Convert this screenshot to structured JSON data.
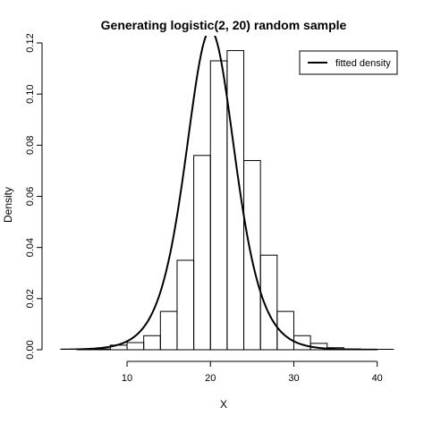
{
  "chart_data": {
    "type": "bar",
    "title": "Generating logistic(2, 20) random sample",
    "xlabel": "X",
    "ylabel": "Density",
    "xlim": [
      1.2,
      42.5
    ],
    "ylim": [
      0,
      0.12
    ],
    "x_ticks": [
      10,
      20,
      30,
      40
    ],
    "x_tick_labels": [
      "10",
      "20",
      "30",
      "40"
    ],
    "y_ticks": [
      0,
      0.02,
      0.04,
      0.06,
      0.08,
      0.1,
      0.12
    ],
    "y_tick_labels": [
      "0.00",
      "0.02",
      "0.04",
      "0.06",
      "0.08",
      "0.10",
      "0.12"
    ],
    "histogram": {
      "bin_edges": [
        4,
        6,
        8,
        10,
        12,
        14,
        16,
        18,
        20,
        22,
        24,
        26,
        28,
        30,
        32,
        34,
        36,
        38,
        40
      ],
      "values": [
        0.0002,
        0.0003,
        0.0018,
        0.0028,
        0.0055,
        0.015,
        0.035,
        0.076,
        0.113,
        0.117,
        0.074,
        0.037,
        0.015,
        0.0055,
        0.0025,
        0.0008,
        0.0003,
        0.0002
      ]
    },
    "density_curve": {
      "name": "fitted density",
      "distribution": "logistic",
      "location": 20,
      "scale": 2,
      "x_range": [
        2,
        42
      ]
    },
    "legend": {
      "position": "top-right",
      "entries": [
        "fitted density"
      ]
    },
    "grid": false
  }
}
